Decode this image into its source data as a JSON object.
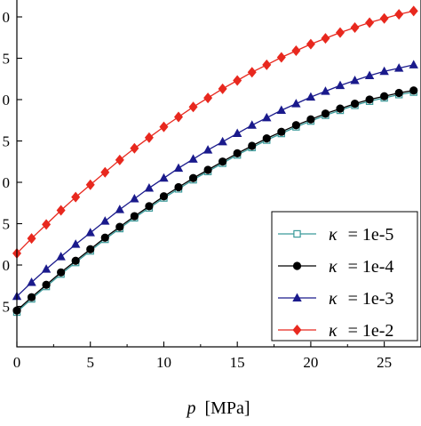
{
  "chart_data": {
    "type": "line",
    "xlabel_italic": "p",
    "xlabel_unit": "[MPa]",
    "xlim": [
      0,
      27.5
    ],
    "x_ticks": [
      0,
      5,
      10,
      15,
      20,
      25
    ],
    "x_tick_labels": [
      "0",
      "5",
      "10",
      "15",
      "20",
      "25"
    ],
    "y_tick_labels": [
      "0",
      "5",
      "0",
      "5",
      "0",
      "5",
      "0",
      "5",
      "0"
    ],
    "grid": false,
    "legend_position": "lower-right",
    "x": [
      0,
      1,
      2,
      3,
      4,
      5,
      6,
      7,
      8,
      9,
      10,
      11,
      12,
      13,
      14,
      15,
      16,
      17,
      18,
      19,
      20,
      21,
      22,
      23,
      24,
      25,
      26,
      27
    ],
    "series": [
      {
        "name": "κ = 1e-5",
        "symbol": "κ",
        "label_value": "= 1e-5",
        "marker": "square-open",
        "color": "#3a9a9a",
        "values": [
          1.42,
          1.58,
          1.73,
          1.88,
          2.02,
          2.16,
          2.3,
          2.43,
          2.56,
          2.68,
          2.8,
          2.91,
          3.02,
          3.12,
          3.22,
          3.32,
          3.41,
          3.5,
          3.58,
          3.66,
          3.73,
          3.8,
          3.86,
          3.92,
          3.97,
          4.01,
          4.05,
          4.08
        ]
      },
      {
        "name": "κ = 1e-4",
        "symbol": "κ",
        "label_value": "= 1e-4",
        "marker": "circle",
        "color": "#000000",
        "values": [
          1.44,
          1.6,
          1.75,
          1.9,
          2.04,
          2.18,
          2.32,
          2.45,
          2.58,
          2.7,
          2.82,
          2.93,
          3.04,
          3.14,
          3.24,
          3.34,
          3.43,
          3.52,
          3.6,
          3.68,
          3.75,
          3.82,
          3.88,
          3.94,
          3.99,
          4.03,
          4.07,
          4.1
        ]
      },
      {
        "name": "κ = 1e-3",
        "symbol": "κ",
        "label_value": "= 1e-3",
        "marker": "triangle",
        "color": "#1a1a8c",
        "values": [
          1.61,
          1.78,
          1.94,
          2.09,
          2.24,
          2.38,
          2.52,
          2.66,
          2.79,
          2.92,
          3.04,
          3.16,
          3.27,
          3.38,
          3.48,
          3.58,
          3.68,
          3.77,
          3.86,
          3.94,
          4.02,
          4.09,
          4.16,
          4.22,
          4.28,
          4.33,
          4.37,
          4.41
        ]
      },
      {
        "name": "κ = 1e-2",
        "symbol": "κ",
        "label_value": "= 1e-2",
        "marker": "diamond",
        "color": "#e8281e",
        "values": [
          2.13,
          2.31,
          2.48,
          2.65,
          2.81,
          2.96,
          3.11,
          3.26,
          3.4,
          3.53,
          3.66,
          3.78,
          3.9,
          4.01,
          4.12,
          4.22,
          4.32,
          4.41,
          4.5,
          4.58,
          4.66,
          4.73,
          4.8,
          4.86,
          4.92,
          4.97,
          5.02,
          5.06
        ]
      }
    ]
  }
}
